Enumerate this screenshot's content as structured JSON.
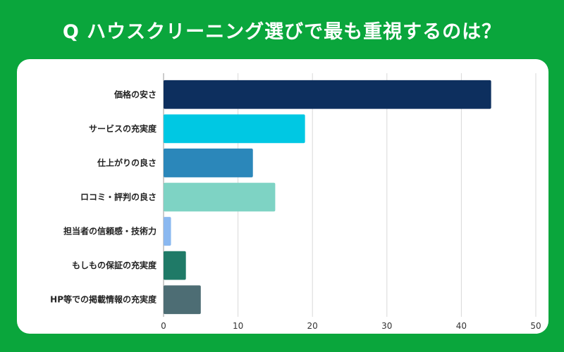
{
  "title": "Q ハウスクリーニング選びで最も重視するのは？",
  "colors": {
    "background": "#0aa63c",
    "card": "#ffffff",
    "grid": "#d9d9d9"
  },
  "chart_data": {
    "type": "bar",
    "orientation": "horizontal",
    "categories": [
      "価格の安さ",
      "サービスの充実度",
      "仕上がりの良さ",
      "ロコミ・評判の良さ",
      "担当者の信頼感・技術力",
      "もしもの保証の充実度",
      "HP等での掲載情報の充実度"
    ],
    "values": [
      44,
      19,
      12,
      15,
      1,
      3,
      5
    ],
    "bar_colors": [
      "#0d2f5e",
      "#00c8e3",
      "#2b87ba",
      "#7ed3c4",
      "#8ab8f0",
      "#1f7a67",
      "#4d6d74"
    ],
    "xlim": [
      0,
      50
    ],
    "xticks": [
      0,
      10,
      20,
      30,
      40,
      50
    ],
    "grid": true,
    "title": "Q ハウスクリーニング選びで最も重視するのは？",
    "xlabel": "",
    "ylabel": ""
  }
}
